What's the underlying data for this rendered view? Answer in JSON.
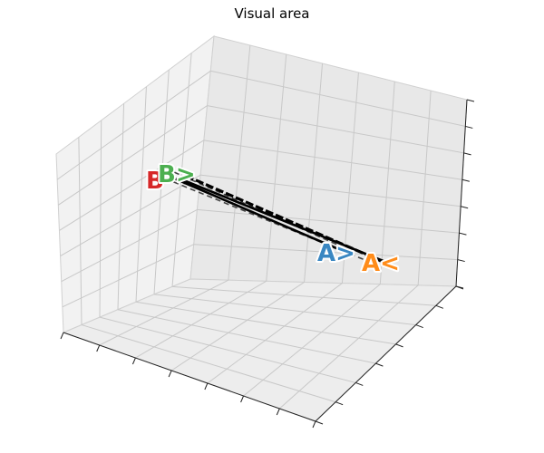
{
  "chart_data": {
    "type": "3d-line",
    "title": "Visual area",
    "xlabel": "",
    "ylabel": "",
    "zlabel": "",
    "grid": true,
    "tick_labels_visible": false,
    "colors": {
      "red": "#d62728",
      "green": "#4caf50",
      "blue": "#3a87c2",
      "orange": "#ff8c1a",
      "line": "#000000",
      "dashed": "#444444"
    },
    "labels": [
      {
        "name": "label-b-red",
        "text": "B",
        "color": "red"
      },
      {
        "name": "label-b-green",
        "text": "B>",
        "color": "green"
      },
      {
        "name": "label-a-blue",
        "text": "A>",
        "color": "blue"
      },
      {
        "name": "label-a-orange",
        "text": "A<",
        "color": "orange"
      }
    ]
  }
}
